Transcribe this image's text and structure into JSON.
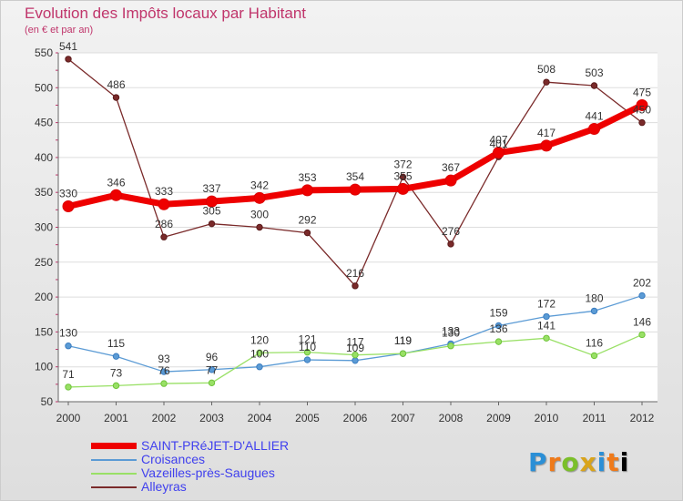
{
  "chart_data": {
    "type": "line",
    "title": "Evolution des Impôts locaux par Habitant",
    "subtitle": "(en € et par an)",
    "xlabel": "",
    "ylabel": "",
    "categories": [
      "2000",
      "2001",
      "2002",
      "2003",
      "2004",
      "2005",
      "2006",
      "2007",
      "2008",
      "2009",
      "2010",
      "2011",
      "2012"
    ],
    "ylim": [
      50,
      550
    ],
    "yticks": [
      50,
      100,
      150,
      200,
      250,
      300,
      350,
      400,
      450,
      500,
      550
    ],
    "series": [
      {
        "name": "SAINT-PRéJET-D'ALLIER",
        "color": "#ee0000",
        "values": [
          330,
          346,
          333,
          337,
          342,
          353,
          354,
          355,
          367,
          407,
          417,
          441,
          475
        ]
      },
      {
        "name": "Croisances",
        "color": "#5b9bd5",
        "values": [
          130,
          115,
          93,
          96,
          100,
          110,
          109,
          119,
          133,
          159,
          172,
          180,
          202
        ]
      },
      {
        "name": "Vazeilles-près-Saugues",
        "color": "#99e066",
        "values": [
          71,
          73,
          76,
          77,
          120,
          121,
          117,
          119,
          130,
          136,
          141,
          116,
          146
        ]
      },
      {
        "name": "Alleyras",
        "color": "#7a2a2a",
        "values": [
          541,
          486,
          286,
          305,
          300,
          292,
          216,
          372,
          276,
          401,
          508,
          503,
          450
        ]
      }
    ],
    "legend_position": "bottom-left"
  },
  "logo": {
    "letters": [
      "P",
      "r",
      "o",
      "x",
      "i",
      "t",
      "i"
    ]
  }
}
